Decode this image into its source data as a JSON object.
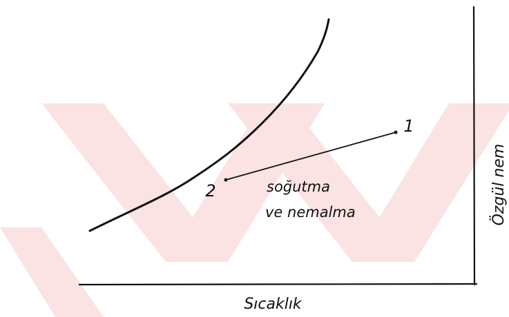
{
  "axes": {
    "x_label": "Sıcaklık",
    "y_label": "Özgül nem"
  },
  "points": [
    {
      "label": "1"
    },
    {
      "label": "2"
    }
  ],
  "process": {
    "label_lines": [
      "soğutma",
      "ve nemalma"
    ]
  }
}
